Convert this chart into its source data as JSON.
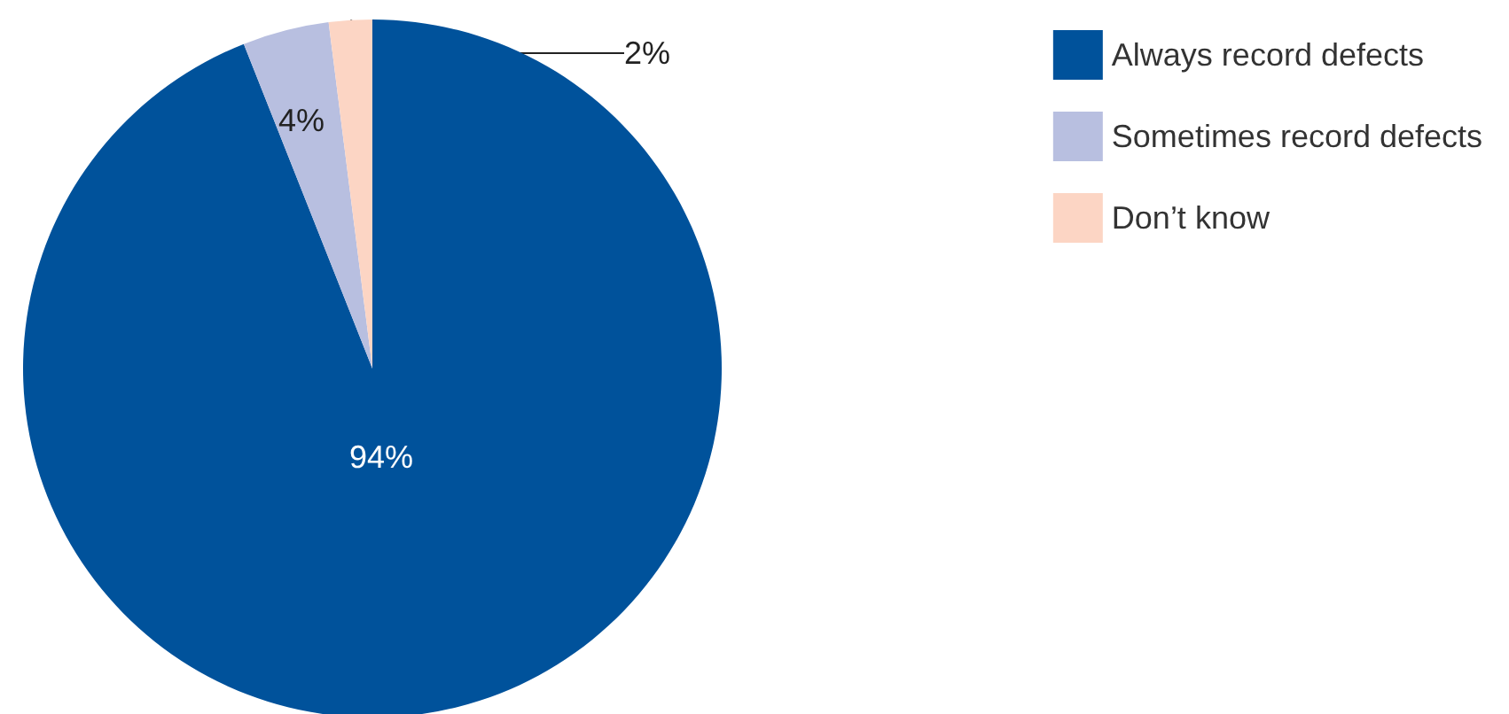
{
  "chart_data": {
    "type": "pie",
    "categories": [
      "Always record defects",
      "Sometimes record defects",
      "Don’t know"
    ],
    "values": [
      94,
      4,
      2
    ],
    "colors": [
      "#00529b",
      "#b8bfe0",
      "#fcd5c4"
    ],
    "value_labels": [
      "94%",
      "4%",
      "2%"
    ],
    "legend": "top right"
  }
}
